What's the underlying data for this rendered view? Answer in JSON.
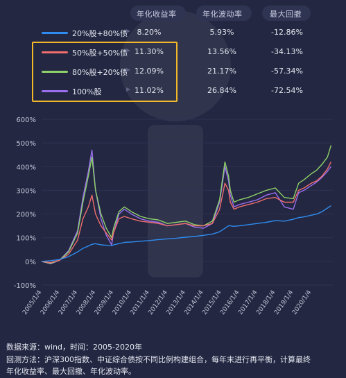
{
  "table": {
    "headers": [
      "年化收益率",
      "年化波动率",
      "最大回撤"
    ],
    "rows": [
      {
        "name": "20%股+80%债",
        "color": "#2f8cf0",
        "ret": "8.20%",
        "vol": "5.93%",
        "mdd": "-12.86%"
      },
      {
        "name": "50%股+50%债",
        "color": "#f06e6e",
        "ret": "11.30%",
        "vol": "13.56%",
        "mdd": "-34.13%"
      },
      {
        "name": "80%股+20%债",
        "color": "#8ed16a",
        "ret": "12.09%",
        "vol": "21.17%",
        "mdd": "-57.34%"
      },
      {
        "name": "100%股",
        "color": "#9b6ff0",
        "ret": "11.02%",
        "vol": "26.84%",
        "mdd": "-72.54%"
      }
    ],
    "highlight_color": "#f2b82a"
  },
  "chart_data": {
    "type": "line",
    "title": "",
    "xlabel": "",
    "ylabel": "",
    "ylim": [
      -100,
      600
    ],
    "yticks": [
      "-100%",
      "0%",
      "100%",
      "200%",
      "300%",
      "400%",
      "500%",
      "600%"
    ],
    "x_ticks": [
      "2005/1/4",
      "2006/1/4",
      "2007/1/4",
      "2008/1/4",
      "2009/1/4",
      "2010/1/4",
      "2011/1/4",
      "2012/1/4",
      "2013/1/4",
      "2014/1/4",
      "2015/1/4",
      "2016/1/4",
      "2017/1/4",
      "2018/1/4",
      "2019/1/4",
      "2020/1/4"
    ],
    "x": [
      2005.0,
      2005.5,
      2006.0,
      2006.5,
      2007.0,
      2007.3,
      2007.6,
      2007.8,
      2008.0,
      2008.3,
      2008.6,
      2008.9,
      2009.0,
      2009.3,
      2009.6,
      2010.0,
      2010.5,
      2011.0,
      2011.5,
      2012.0,
      2012.5,
      2013.0,
      2013.5,
      2014.0,
      2014.5,
      2014.9,
      2015.2,
      2015.4,
      2015.5,
      2015.7,
      2016.0,
      2016.5,
      2017.0,
      2017.5,
      2018.0,
      2018.5,
      2019.0,
      2019.3,
      2019.6,
      2020.0,
      2020.3,
      2020.6,
      2020.9,
      2021.1
    ],
    "series": [
      {
        "name": "20%股+80%债",
        "color": "#2f8cf0",
        "values": [
          0,
          3,
          8,
          20,
          40,
          55,
          65,
          72,
          75,
          70,
          68,
          66,
          70,
          75,
          80,
          82,
          85,
          88,
          92,
          95,
          98,
          102,
          105,
          110,
          115,
          125,
          140,
          150,
          150,
          148,
          150,
          155,
          160,
          165,
          172,
          170,
          178,
          185,
          188,
          195,
          200,
          210,
          225,
          235
        ]
      },
      {
        "name": "50%股+50%债",
        "color": "#f06e6e",
        "values": [
          0,
          -5,
          5,
          30,
          90,
          180,
          230,
          280,
          200,
          150,
          120,
          90,
          120,
          180,
          190,
          180,
          170,
          165,
          160,
          150,
          155,
          160,
          150,
          150,
          160,
          220,
          330,
          300,
          250,
          220,
          230,
          240,
          250,
          265,
          270,
          250,
          250,
          300,
          310,
          330,
          340,
          360,
          390,
          420
        ]
      },
      {
        "name": "80%股+20%债",
        "color": "#8ed16a",
        "values": [
          0,
          -8,
          5,
          40,
          120,
          250,
          360,
          440,
          300,
          200,
          140,
          100,
          140,
          210,
          230,
          210,
          190,
          180,
          175,
          160,
          165,
          170,
          155,
          150,
          170,
          260,
          420,
          360,
          300,
          250,
          260,
          270,
          285,
          300,
          310,
          270,
          265,
          330,
          345,
          370,
          385,
          410,
          440,
          490
        ]
      },
      {
        "name": "100%股",
        "color": "#9b6ff0",
        "values": [
          0,
          -10,
          5,
          45,
          130,
          270,
          380,
          470,
          300,
          180,
          110,
          70,
          120,
          200,
          220,
          200,
          180,
          170,
          165,
          150,
          155,
          160,
          145,
          140,
          160,
          250,
          400,
          340,
          280,
          230,
          240,
          250,
          260,
          280,
          290,
          230,
          220,
          290,
          300,
          320,
          335,
          355,
          380,
          400
        ]
      }
    ]
  },
  "footer": {
    "line1": "数据来源：wind，时间：2005-2020年",
    "line2": "回测方法：沪深300指数、中证综合债按不同比例构建组合，每年末进行再平衡，计算最终",
    "line3": "年化收益率、最大回撤、年化波动率。"
  }
}
